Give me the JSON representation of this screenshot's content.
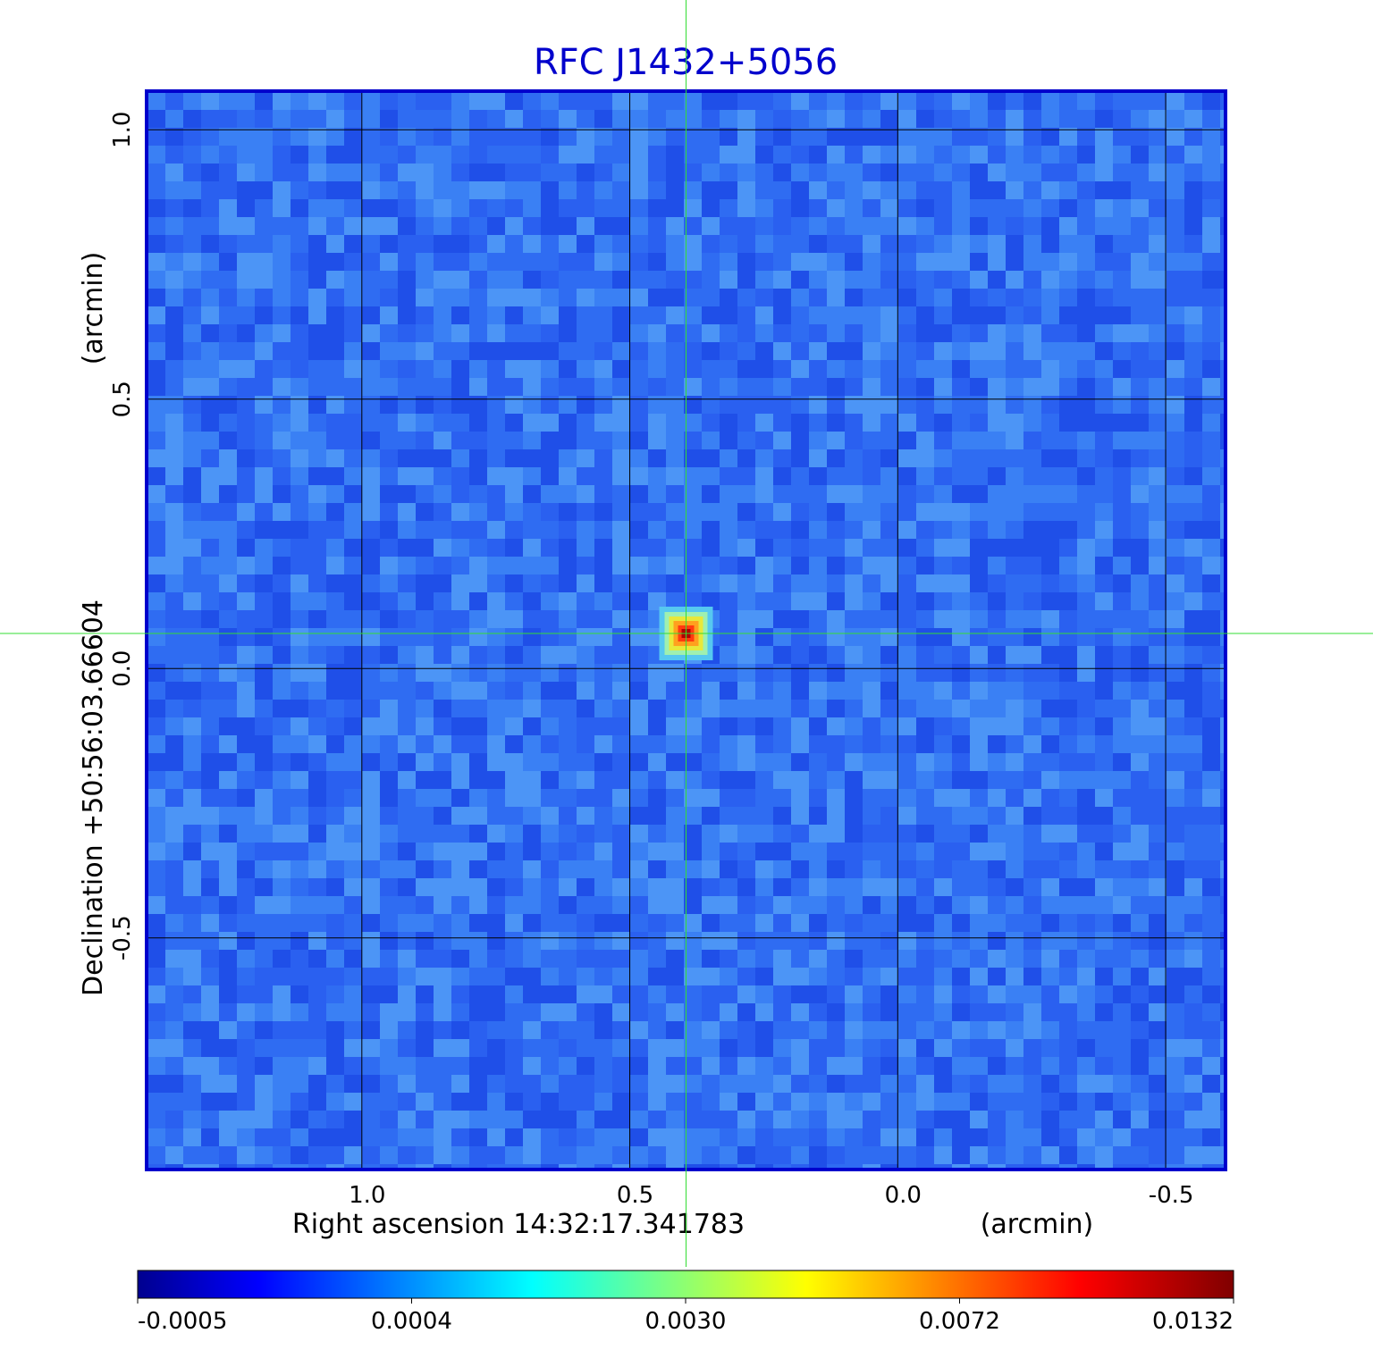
{
  "chart_data": {
    "type": "heatmap",
    "title": "RFC J1432+5056",
    "xlabel": "Right ascension  14:32:17.341783",
    "xunit": "(arcmin)",
    "ylabel": "Declination  +50:56:03.66604",
    "yunit": "(arcmin)",
    "x_axis": {
      "reversed": true,
      "range": [
        1.4,
        -0.61
      ],
      "ticks": [
        1.0,
        0.5,
        0.0,
        -0.5
      ],
      "tick_labels": [
        "1.0",
        "0.5",
        "0.0",
        "-0.5"
      ]
    },
    "y_axis": {
      "range": [
        -0.93,
        1.07
      ],
      "ticks": [
        1.0,
        0.5,
        0.0,
        -0.5
      ],
      "tick_labels": [
        "1.0",
        "0.5",
        "0.0",
        "-0.5"
      ]
    },
    "grid": true,
    "crosshair": {
      "x": 0.395,
      "y": 0.065,
      "color": "#33dd33"
    },
    "source": {
      "x": 0.395,
      "y": 0.065,
      "peak": 0.0132
    },
    "colorbar": {
      "location": "bottom",
      "colormap": "jet",
      "tick_labels": [
        "-0.0005",
        "0.0004",
        "0.0030",
        "0.0072",
        "0.0132"
      ]
    },
    "colors": {
      "title": "#0000cc",
      "frame": "#0000cc",
      "grid": "#000000"
    }
  }
}
